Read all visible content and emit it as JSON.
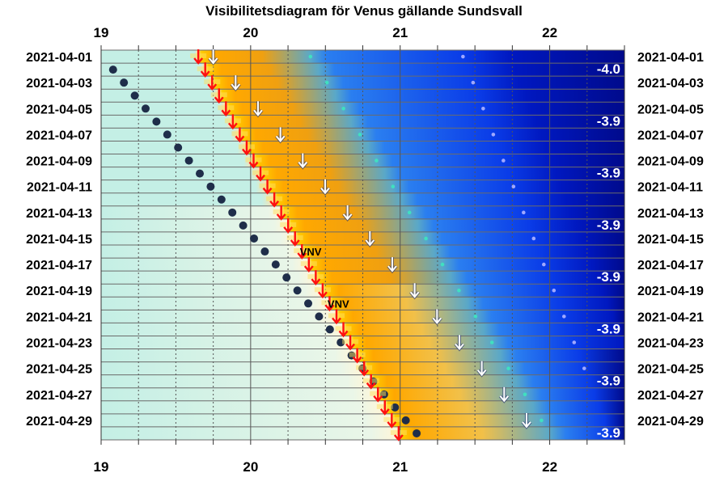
{
  "chart_data": {
    "type": "scatter",
    "title": "Visibilitetsdiagram för Venus gällande Sundsvall",
    "x_ticks": [
      19,
      20,
      21,
      22
    ],
    "x_range": [
      19,
      22.5
    ],
    "dates": [
      "2021-04-01",
      "2021-04-03",
      "2021-04-05",
      "2021-04-07",
      "2021-04-09",
      "2021-04-11",
      "2021-04-13",
      "2021-04-15",
      "2021-04-17",
      "2021-04-19",
      "2021-04-21",
      "2021-04-23",
      "2021-04-25",
      "2021-04-27",
      "2021-04-29"
    ],
    "magnitude_labels": [
      {
        "date": "2021-04-01",
        "value": "-4.0"
      },
      {
        "date": "2021-04-05",
        "value": "-3.9"
      },
      {
        "date": "2021-04-09",
        "value": "-3.9"
      },
      {
        "date": "2021-04-13",
        "value": "-3.9"
      },
      {
        "date": "2021-04-17",
        "value": "-3.9"
      },
      {
        "date": "2021-04-21",
        "value": "-3.9"
      },
      {
        "date": "2021-04-25",
        "value": "-3.9"
      },
      {
        "date": "2021-04-29",
        "value": "-3.9"
      }
    ],
    "direction_labels": [
      {
        "date": "2021-04-15",
        "value": "VNV"
      },
      {
        "date": "2021-04-19",
        "value": "VNV"
      }
    ],
    "sunset_start": 19.08,
    "sunset_end": 21.11,
    "venus_set_start": 19.65,
    "venus_set_end": 20.99,
    "venus_alt_start": 19.75,
    "venus_alt_end": 21.92,
    "twilight_start": 20.4,
    "twilight_end": 22.0,
    "deep_twilight_start": 21.42,
    "deep_twilight_end": 22.4,
    "colors": {
      "background": "#c4efe5",
      "sunset_dots": "#1f2e4a",
      "venus_set_arrow": "#ff1010",
      "venus_alt_arrow": "#ffffff",
      "twilight_dots": "#40e0c0",
      "deep_dots": "#a0a8ff",
      "night": "#000a8c"
    }
  }
}
